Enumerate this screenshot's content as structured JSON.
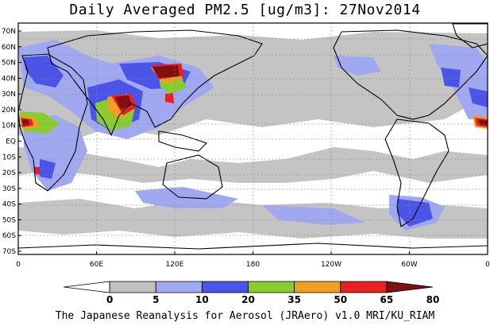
{
  "title": "Daily Averaged PM2.5 [ug/m3]: 27Nov2014",
  "credit": "The Japanese Reanalysis for Aerosol (JRAero) v1.0 MRI/KU_RIAM",
  "map": {
    "projection": "equirectangular",
    "center_longitude": "180",
    "lat_labels": [
      "70N",
      "60N",
      "50N",
      "40N",
      "30N",
      "20N",
      "10N",
      "EQ",
      "10S",
      "20S",
      "30S",
      "40S",
      "50S",
      "60S",
      "70S"
    ],
    "lon_labels": [
      "0",
      "60E",
      "120E",
      "180",
      "120W",
      "60W",
      "0"
    ],
    "grid": "dotted"
  },
  "legend": {
    "labels": [
      "0",
      "5",
      "10",
      "20",
      "35",
      "50",
      "65",
      "80"
    ],
    "colors": [
      "#ffffff",
      "#c0c0c0",
      "#a0a8f0",
      "#4a55e8",
      "#88cc30",
      "#f0a020",
      "#e82020",
      "#801010"
    ]
  }
}
